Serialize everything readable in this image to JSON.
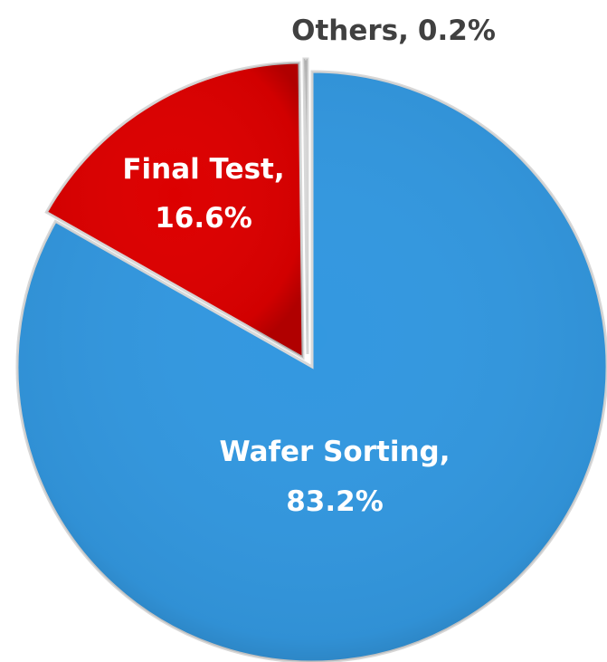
{
  "chart_data": {
    "type": "pie",
    "categories": [
      "Wafer Sorting",
      "Final Test",
      "Others"
    ],
    "values": [
      83.2,
      16.6,
      0.2
    ],
    "value_labels": [
      "83.2%",
      "16.6%",
      "0.2%"
    ],
    "separator": ",",
    "colors": [
      "#3398e0",
      "#dc0000",
      "#9a9a9a"
    ],
    "label_colors": [
      "#ffffff",
      "#ffffff",
      "#404040"
    ]
  }
}
